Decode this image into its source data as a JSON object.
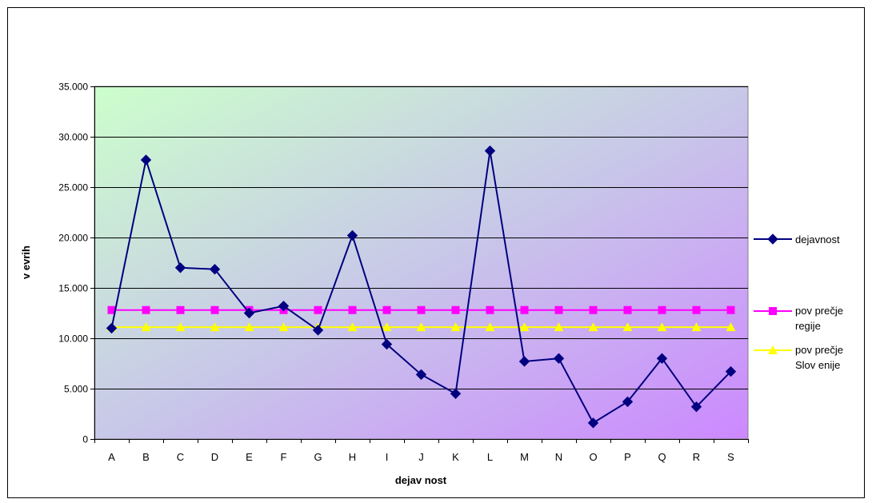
{
  "chart_data": {
    "type": "line",
    "categories": [
      "A",
      "B",
      "C",
      "D",
      "E",
      "F",
      "G",
      "H",
      "I",
      "J",
      "K",
      "L",
      "M",
      "N",
      "O",
      "P",
      "Q",
      "R",
      "S"
    ],
    "series": [
      {
        "name": "dejavnost",
        "color": "#000080",
        "marker": "diamond",
        "values": [
          11000,
          27700,
          17000,
          16850,
          12500,
          13200,
          10800,
          20200,
          9400,
          6400,
          4500,
          28600,
          7700,
          8000,
          1600,
          3700,
          8000,
          3200,
          6700
        ]
      },
      {
        "name": "povprečje regije",
        "legend_lines": [
          "pov prečje",
          "regije"
        ],
        "color": "#FF00FF",
        "marker": "square",
        "values": [
          12800,
          12800,
          12800,
          12800,
          12800,
          12800,
          12800,
          12800,
          12800,
          12800,
          12800,
          12800,
          12800,
          12800,
          12800,
          12800,
          12800,
          12800,
          12800
        ]
      },
      {
        "name": "povprečje Slovenije",
        "legend_lines": [
          "pov prečje",
          "Slov enije"
        ],
        "color": "#FFFF00",
        "marker": "triangle",
        "values": [
          11100,
          11100,
          11100,
          11100,
          11100,
          11100,
          11100,
          11100,
          11100,
          11100,
          11100,
          11100,
          11100,
          11100,
          11100,
          11100,
          11100,
          11100,
          11100
        ]
      }
    ],
    "xlabel": "dejav nost",
    "ylabel": "v evrih",
    "ylim": [
      0,
      35000
    ],
    "yticks": [
      0,
      5000,
      10000,
      15000,
      20000,
      25000,
      30000,
      35000
    ],
    "ytick_labels": [
      "0",
      "5.000",
      "10.000",
      "15.000",
      "20.000",
      "25.000",
      "30.000",
      "35.000"
    ],
    "grid": "horizontal",
    "legend_position": "right"
  }
}
